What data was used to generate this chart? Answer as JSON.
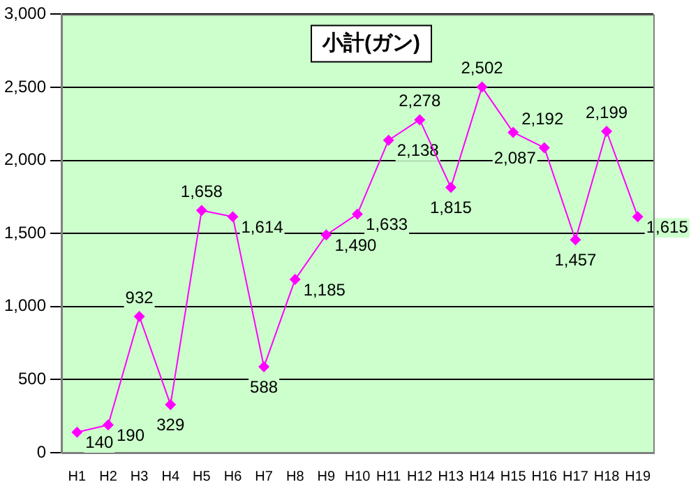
{
  "chart_data": {
    "type": "line",
    "title": "小計(ガン)",
    "categories": [
      "H1",
      "H2",
      "H3",
      "H4",
      "H5",
      "H6",
      "H7",
      "H8",
      "H9",
      "H10",
      "H11",
      "H12",
      "H13",
      "H14",
      "H15",
      "H16",
      "H17",
      "H18",
      "H19"
    ],
    "series": [
      {
        "color": "#ff00ff",
        "values": [
          140,
          190,
          932,
          329,
          1658,
          1614,
          588,
          1185,
          1490,
          1633,
          2138,
          2278,
          1815,
          2502,
          2192,
          2087,
          1457,
          2199,
          1615
        ],
        "value_labels": [
          "140",
          "190",
          "932",
          "329",
          "1,658",
          "1,614",
          "588",
          "1,185",
          "1,490",
          "1,633",
          "2,138",
          "2,278",
          "1,815",
          "2,502",
          "2,192",
          "2,087",
          "1,457",
          "2,199",
          "1,615"
        ]
      }
    ],
    "ylim": [
      0,
      3000
    ],
    "yticks": [
      {
        "value": 0,
        "label": "0"
      },
      {
        "value": 500,
        "label": "500"
      },
      {
        "value": 1000,
        "label": "1,000"
      },
      {
        "value": 1500,
        "label": "1,500"
      },
      {
        "value": 2000,
        "label": "2,000"
      },
      {
        "value": 2500,
        "label": "2,500"
      },
      {
        "value": 3000,
        "label": "3,000"
      }
    ],
    "grid": "y",
    "legend": false,
    "marker": "diamond",
    "line_style": "solid"
  }
}
